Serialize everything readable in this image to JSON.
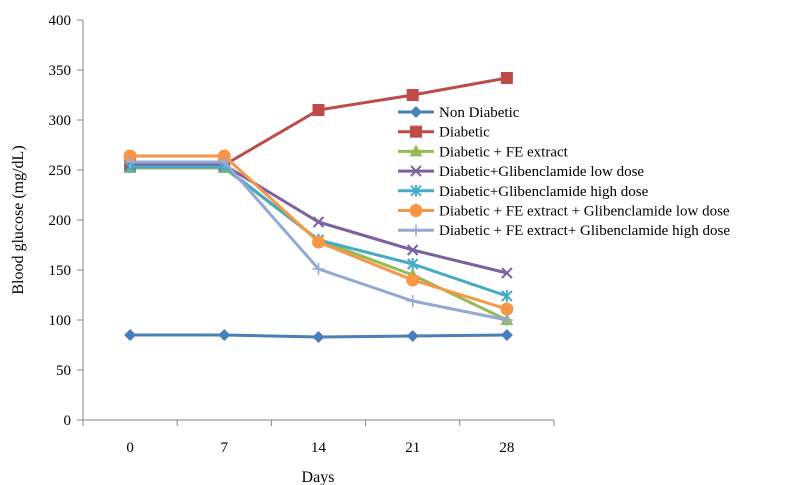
{
  "chart_data": {
    "type": "line",
    "title": "",
    "xlabel": "Days",
    "ylabel": "Blood glucose (mg/dL)",
    "categories": [
      "0",
      "7",
      "14",
      "21",
      "28"
    ],
    "y_ticks": [
      "0",
      "50",
      "100",
      "150",
      "200",
      "250",
      "300",
      "350",
      "400"
    ],
    "ylim": [
      0,
      400
    ],
    "grid": false,
    "legend_position": "right",
    "series": [
      {
        "name": "Non Diabetic",
        "values": [
          85,
          85,
          83,
          84,
          85
        ],
        "color": "#4a7ebb",
        "marker": "diamond"
      },
      {
        "name": "Diabetic",
        "values": [
          255,
          255,
          310,
          325,
          342
        ],
        "color": "#be4b48",
        "marker": "square"
      },
      {
        "name": "Diabetic + FE extract",
        "values": [
          252,
          252,
          180,
          145,
          100
        ],
        "color": "#98b954",
        "marker": "triangle"
      },
      {
        "name": "Diabetic+Glibenclamide low dose",
        "values": [
          255,
          255,
          198,
          170,
          147
        ],
        "color": "#7d60a0",
        "marker": "x"
      },
      {
        "name": "Diabetic+Glibenclamide high dose",
        "values": [
          253,
          253,
          180,
          156,
          124
        ],
        "color": "#46aac5",
        "marker": "star"
      },
      {
        "name": "Diabetic + FE extract + Glibenclamide low dose",
        "values": [
          264,
          264,
          178,
          140,
          111
        ],
        "color": "#f79646",
        "marker": "circle"
      },
      {
        "name": "Diabetic + FE extract+ Glibenclamide high dose",
        "values": [
          258,
          258,
          151,
          119,
          100
        ],
        "color": "#93a9d4",
        "marker": "plus"
      }
    ]
  }
}
